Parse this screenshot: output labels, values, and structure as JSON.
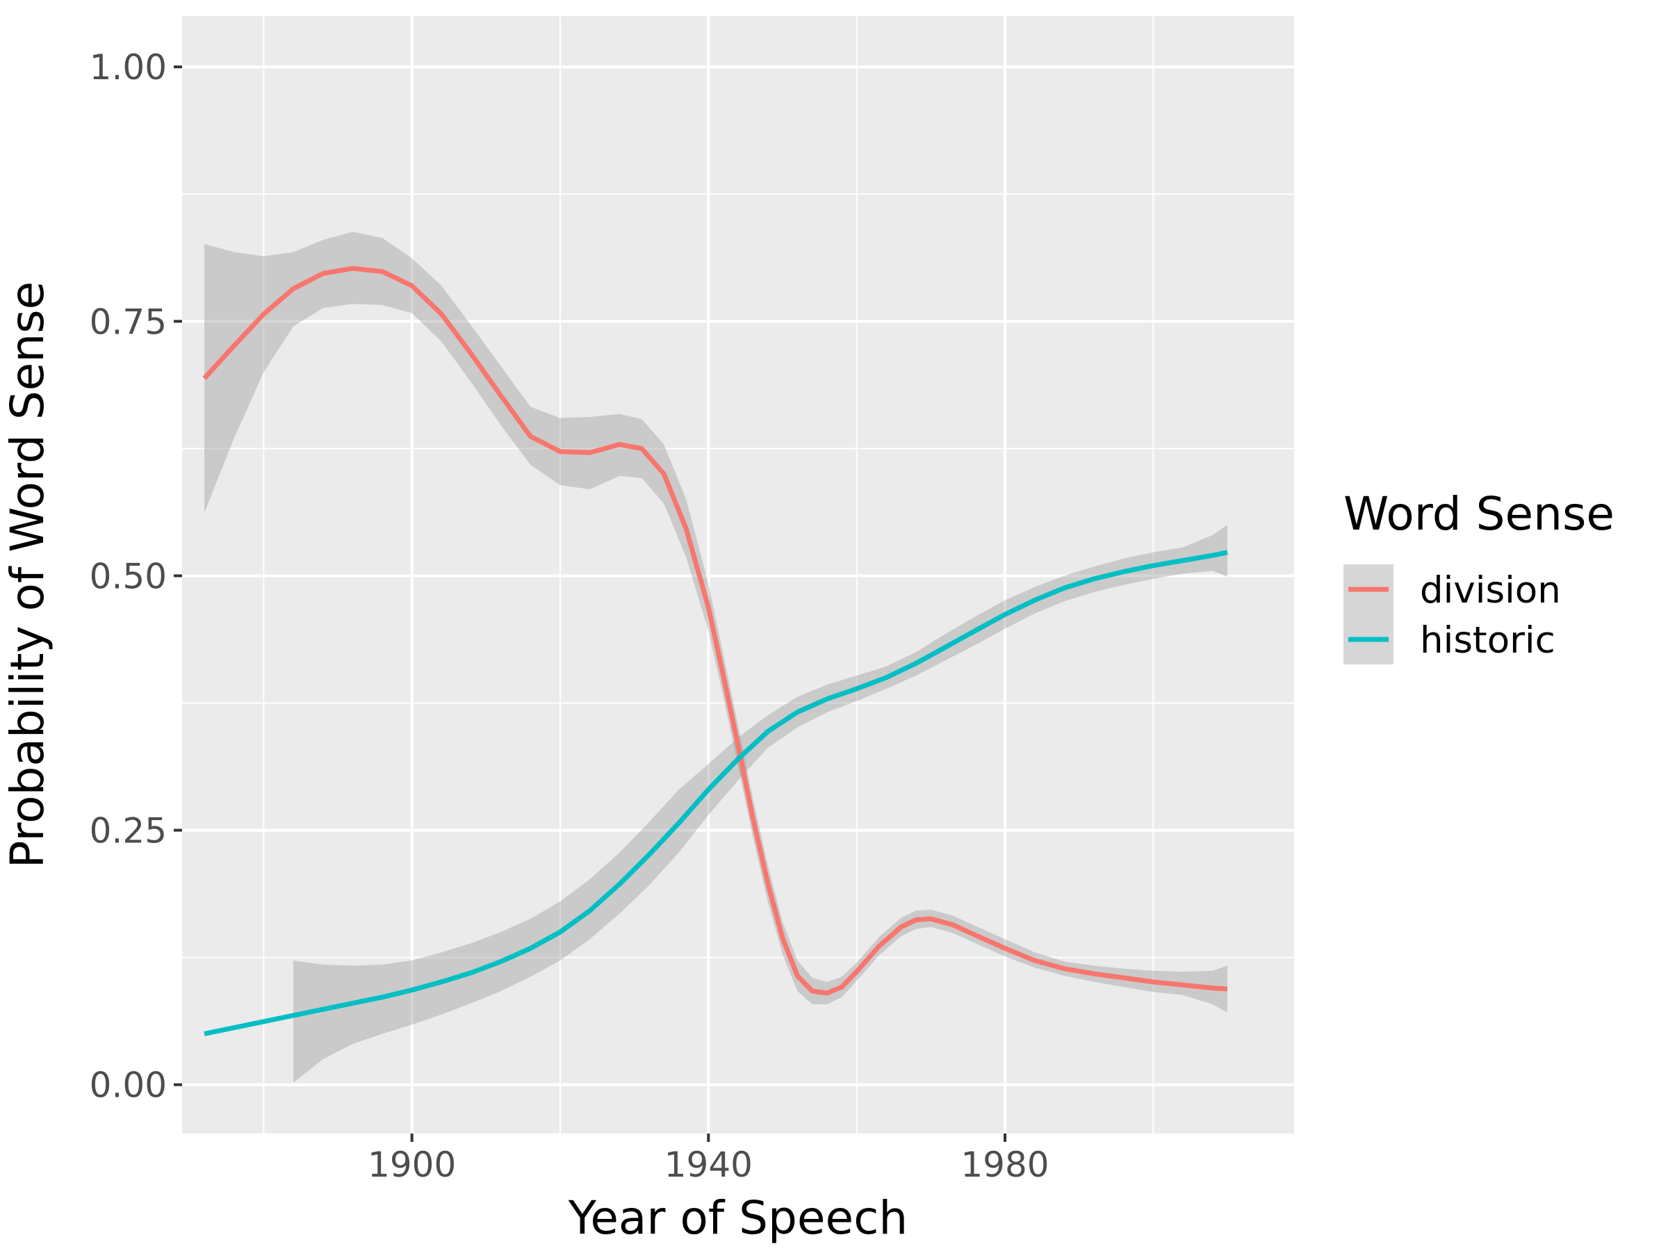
{
  "chart_data": {
    "type": "line",
    "title": "",
    "xlabel": "Year of Speech",
    "ylabel": "Probability of Word Sense",
    "xlim": [
      1869,
      2019
    ],
    "ylim": [
      -0.048,
      1.05
    ],
    "x_major_ticks": [
      1900,
      1940,
      1980
    ],
    "x_minor_ticks": [
      1880,
      1920,
      1960,
      2000
    ],
    "y_major_ticks": [
      0.0,
      0.25,
      0.5,
      0.75,
      1.0
    ],
    "y_tick_labels": [
      "0.00",
      "0.25",
      "0.50",
      "0.75",
      "1.00"
    ],
    "y_minor_ticks": [
      0.125,
      0.375,
      0.625,
      0.875
    ],
    "grid": true,
    "legend": {
      "title": "Word Sense",
      "position": "right"
    },
    "band_color": "#999999",
    "panel_color": "#ebebeb",
    "series": [
      {
        "name": "division",
        "color": "#F8766D",
        "x": [
          1872,
          1876,
          1880,
          1884,
          1888,
          1892,
          1896,
          1900,
          1904,
          1908,
          1912,
          1916,
          1920,
          1924,
          1928,
          1931,
          1934,
          1937,
          1940,
          1942,
          1944,
          1946,
          1948,
          1950,
          1952,
          1954,
          1956,
          1958,
          1960,
          1963,
          1966,
          1968,
          1970,
          1973,
          1976,
          1980,
          1984,
          1988,
          1992,
          1996,
          2000,
          2004,
          2008,
          2010
        ],
        "y": [
          0.694,
          0.726,
          0.757,
          0.782,
          0.797,
          0.802,
          0.799,
          0.785,
          0.757,
          0.718,
          0.677,
          0.637,
          0.622,
          0.621,
          0.629,
          0.625,
          0.6,
          0.546,
          0.469,
          0.402,
          0.333,
          0.262,
          0.198,
          0.144,
          0.107,
          0.092,
          0.09,
          0.096,
          0.111,
          0.136,
          0.155,
          0.162,
          0.163,
          0.157,
          0.147,
          0.134,
          0.122,
          0.114,
          0.109,
          0.105,
          0.101,
          0.098,
          0.095,
          0.094
        ],
        "lower": [
          0.562,
          0.635,
          0.7,
          0.745,
          0.763,
          0.767,
          0.766,
          0.758,
          0.73,
          0.69,
          0.648,
          0.609,
          0.589,
          0.585,
          0.598,
          0.596,
          0.571,
          0.518,
          0.446,
          0.381,
          0.313,
          0.243,
          0.18,
          0.128,
          0.092,
          0.079,
          0.079,
          0.086,
          0.102,
          0.127,
          0.146,
          0.153,
          0.155,
          0.149,
          0.139,
          0.126,
          0.115,
          0.107,
          0.101,
          0.096,
          0.091,
          0.088,
          0.079,
          0.071
        ],
        "upper": [
          0.826,
          0.818,
          0.814,
          0.818,
          0.83,
          0.838,
          0.832,
          0.812,
          0.785,
          0.746,
          0.706,
          0.666,
          0.655,
          0.656,
          0.659,
          0.654,
          0.629,
          0.575,
          0.492,
          0.423,
          0.353,
          0.281,
          0.216,
          0.16,
          0.122,
          0.105,
          0.101,
          0.106,
          0.12,
          0.145,
          0.164,
          0.171,
          0.172,
          0.166,
          0.156,
          0.143,
          0.13,
          0.121,
          0.117,
          0.114,
          0.112,
          0.111,
          0.112,
          0.117
        ]
      },
      {
        "name": "historic",
        "color": "#00BFC4",
        "x": [
          1872,
          1876,
          1880,
          1884,
          1888,
          1892,
          1896,
          1900,
          1904,
          1908,
          1912,
          1916,
          1920,
          1924,
          1928,
          1932,
          1936,
          1940,
          1944,
          1948,
          1952,
          1956,
          1960,
          1964,
          1968,
          1972,
          1976,
          1980,
          1984,
          1988,
          1992,
          1996,
          2000,
          2004,
          2008,
          2010
        ],
        "y": [
          0.05,
          0.056,
          0.062,
          0.068,
          0.074,
          0.08,
          0.086,
          0.093,
          0.101,
          0.11,
          0.121,
          0.134,
          0.15,
          0.171,
          0.197,
          0.226,
          0.257,
          0.29,
          0.32,
          0.347,
          0.366,
          0.379,
          0.389,
          0.4,
          0.414,
          0.43,
          0.446,
          0.462,
          0.476,
          0.488,
          0.497,
          0.504,
          0.51,
          0.515,
          0.52,
          0.523
        ],
        "lower": [
          null,
          null,
          null,
          0.002,
          0.025,
          0.04,
          0.05,
          0.059,
          0.069,
          0.08,
          0.092,
          0.106,
          0.122,
          0.143,
          0.168,
          0.196,
          0.228,
          0.265,
          0.299,
          0.331,
          0.351,
          0.366,
          0.377,
          0.389,
          0.402,
          0.417,
          0.432,
          0.448,
          0.463,
          0.475,
          0.484,
          0.491,
          0.497,
          0.502,
          0.505,
          0.499
        ],
        "upper": [
          null,
          null,
          null,
          0.122,
          0.118,
          0.117,
          0.118,
          0.122,
          0.13,
          0.139,
          0.15,
          0.163,
          0.18,
          0.202,
          0.228,
          0.258,
          0.29,
          0.315,
          0.341,
          0.363,
          0.381,
          0.393,
          0.402,
          0.411,
          0.425,
          0.443,
          0.46,
          0.476,
          0.489,
          0.5,
          0.509,
          0.517,
          0.523,
          0.528,
          0.54,
          0.55
        ]
      }
    ]
  }
}
